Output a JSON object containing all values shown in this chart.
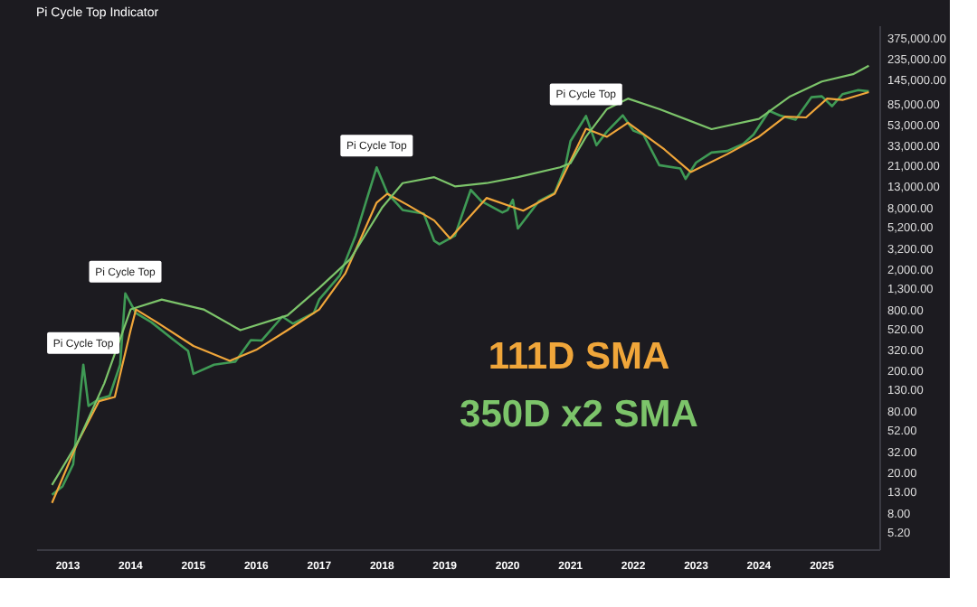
{
  "chart_data": {
    "type": "line",
    "title": "Pi Cycle Top Indicator",
    "log": true,
    "xlim": [
      "2012-07-01",
      "2025-12-01"
    ],
    "xticks": [
      "2013",
      "2014",
      "2015",
      "2016",
      "2017",
      "2018",
      "2019",
      "2020",
      "2021",
      "2022",
      "2023",
      "2024",
      "2025"
    ],
    "ylim": [
      3.5,
      500000
    ],
    "yticks": [
      {
        "value": 5.2,
        "label": "5.20"
      },
      {
        "value": 8,
        "label": "8.00"
      },
      {
        "value": 13,
        "label": "13.00"
      },
      {
        "value": 20,
        "label": "20.00"
      },
      {
        "value": 32,
        "label": "32.00"
      },
      {
        "value": 52,
        "label": "52.00"
      },
      {
        "value": 80,
        "label": "80.00"
      },
      {
        "value": 130,
        "label": "130.00"
      },
      {
        "value": 200,
        "label": "200.00"
      },
      {
        "value": 320,
        "label": "320.00"
      },
      {
        "value": 520,
        "label": "520.00"
      },
      {
        "value": 800,
        "label": "800.00"
      },
      {
        "value": 1300,
        "label": "1,300.00"
      },
      {
        "value": 2000,
        "label": "2,000.00"
      },
      {
        "value": 3200,
        "label": "3,200.00"
      },
      {
        "value": 5200,
        "label": "5,200.00"
      },
      {
        "value": 8000,
        "label": "8,000.00"
      },
      {
        "value": 13000,
        "label": "13,000.00"
      },
      {
        "value": 21000,
        "label": "21,000.00"
      },
      {
        "value": 33000,
        "label": "33,000.00"
      },
      {
        "value": 53000,
        "label": "53,000.00"
      },
      {
        "value": 85000,
        "label": "85,000.00"
      },
      {
        "value": 145000,
        "label": "145,000.00"
      },
      {
        "value": 235000,
        "label": "235,000.00"
      },
      {
        "value": 375000,
        "label": "375,000.00"
      }
    ],
    "series": [
      {
        "type": "line",
        "color": "#3f9a55",
        "x": [
          "2012-10",
          "2012-12",
          "2013-02",
          "2013-04",
          "2013-05",
          "2013-07",
          "2013-09",
          "2013-11",
          "2013-12",
          "2014-02",
          "2014-05",
          "2014-09",
          "2014-12",
          "2015-01",
          "2015-05",
          "2015-09",
          "2015-12",
          "2016-02",
          "2016-06",
          "2016-08",
          "2016-12",
          "2017-01",
          "2017-05",
          "2017-08",
          "2017-10",
          "2017-12",
          "2018-02",
          "2018-05",
          "2018-09",
          "2018-11",
          "2018-12",
          "2019-03",
          "2019-06",
          "2019-08",
          "2019-12",
          "2020-01",
          "2020-02",
          "2020-03",
          "2020-07",
          "2020-10",
          "2020-12",
          "2021-01",
          "2021-04",
          "2021-06",
          "2021-08",
          "2021-11",
          "2022-01",
          "2022-03",
          "2022-06",
          "2022-10",
          "2022-11",
          "2023-01",
          "2023-04",
          "2023-07",
          "2023-10",
          "2023-12",
          "2024-03",
          "2024-05",
          "2024-08",
          "2024-11",
          "2025-01",
          "2025-03",
          "2025-05",
          "2025-08",
          "2025-10"
        ],
        "values": [
          12,
          14.5,
          24,
          229,
          90,
          105,
          113,
          229,
          1150,
          735,
          600,
          410,
          312,
          186,
          229,
          245,
          400,
          395,
          680,
          580,
          740,
          1000,
          1730,
          4250,
          9270,
          20000,
          11200,
          7620,
          7000,
          3780,
          3500,
          4250,
          12000,
          9300,
          7200,
          7600,
          9600,
          5000,
          9300,
          11200,
          20200,
          36200,
          64000,
          33000,
          45000,
          65000,
          46000,
          42000,
          21000,
          19500,
          15400,
          22300,
          28000,
          29000,
          34000,
          42000,
          72000,
          65000,
          59000,
          98000,
          100000,
          80000,
          105000,
          115000,
          112000
        ]
      },
      {
        "type": "line",
        "name": "111D SMA",
        "color": "#f0a63a",
        "x": [
          "2012-10",
          "2013-03",
          "2013-07",
          "2013-10",
          "2014-01",
          "2014-02",
          "2014-06",
          "2015-01",
          "2015-08",
          "2016-01",
          "2016-07",
          "2017-01",
          "2017-06",
          "2017-12",
          "2018-02",
          "2018-06",
          "2018-11",
          "2019-02",
          "2019-09",
          "2020-04",
          "2020-10",
          "2021-04",
          "2021-08",
          "2021-12",
          "2022-07",
          "2022-12",
          "2023-07",
          "2024-01",
          "2024-06",
          "2024-10",
          "2025-02",
          "2025-05",
          "2025-10"
        ],
        "values": [
          10,
          40,
          100,
          110,
          500,
          800,
          600,
          350,
          250,
          320,
          500,
          800,
          1800,
          9000,
          11000,
          8500,
          6000,
          4000,
          10000,
          7500,
          11000,
          48000,
          40000,
          55000,
          30000,
          18000,
          27000,
          40000,
          63000,
          62000,
          95000,
          92000,
          110000
        ]
      },
      {
        "type": "line",
        "name": "350D x2 SMA",
        "color": "#7cc46a",
        "x": [
          "2012-10",
          "2013-03",
          "2013-08",
          "2014-01",
          "2014-07",
          "2015-03",
          "2015-10",
          "2016-07",
          "2017-01",
          "2017-07",
          "2018-01",
          "2018-05",
          "2018-11",
          "2019-03",
          "2019-09",
          "2020-03",
          "2020-11",
          "2021-01",
          "2021-04",
          "2021-08",
          "2021-12",
          "2022-06",
          "2023-04",
          "2024-01",
          "2024-07",
          "2025-01",
          "2025-07",
          "2025-10"
        ],
        "values": [
          15,
          40,
          150,
          800,
          1000,
          800,
          500,
          700,
          1300,
          2500,
          8000,
          14000,
          16000,
          13000,
          14000,
          16000,
          20000,
          22000,
          40000,
          75000,
          95000,
          75000,
          47500,
          60000,
          100000,
          140000,
          165000,
          200000
        ]
      }
    ],
    "annotations": [
      {
        "text": "Pi Cycle Top",
        "x": "2013-04",
        "y": 229
      },
      {
        "text": "Pi Cycle Top",
        "x": "2013-12",
        "y": 1150
      },
      {
        "text": "Pi Cycle Top",
        "x": "2017-12",
        "y": 20000
      },
      {
        "text": "Pi Cycle Top",
        "x": "2021-04",
        "y": 64000
      }
    ]
  }
}
